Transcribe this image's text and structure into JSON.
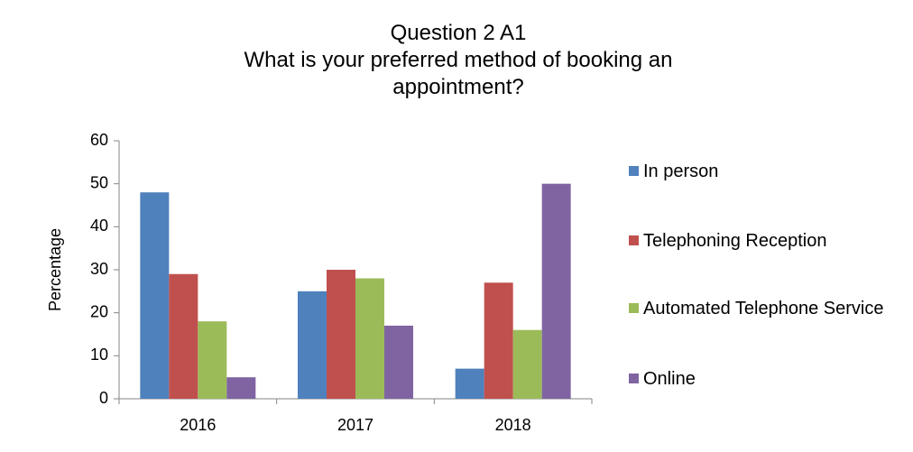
{
  "chart_data": {
    "type": "bar",
    "title": "Question 2 A1",
    "subtitle": "What is your preferred method of booking an appointment?",
    "y_label": "Percentage",
    "categories": [
      "2016",
      "2017",
      "2018"
    ],
    "series": [
      {
        "name": "In person",
        "color": "#4f81bd",
        "values": [
          48,
          25,
          7
        ]
      },
      {
        "name": "Telephoning Reception",
        "color": "#c0504d",
        "values": [
          29,
          30,
          27
        ]
      },
      {
        "name": "Automated Telephone Service",
        "color": "#9bbb59",
        "values": [
          18,
          28,
          16
        ]
      },
      {
        "name": "Online",
        "color": "#8064a2",
        "values": [
          5,
          17,
          50
        ]
      }
    ],
    "ylim": [
      0,
      60
    ],
    "yticks": [
      0,
      10,
      20,
      30,
      40,
      50,
      60
    ],
    "grid": false,
    "legend": "right"
  }
}
